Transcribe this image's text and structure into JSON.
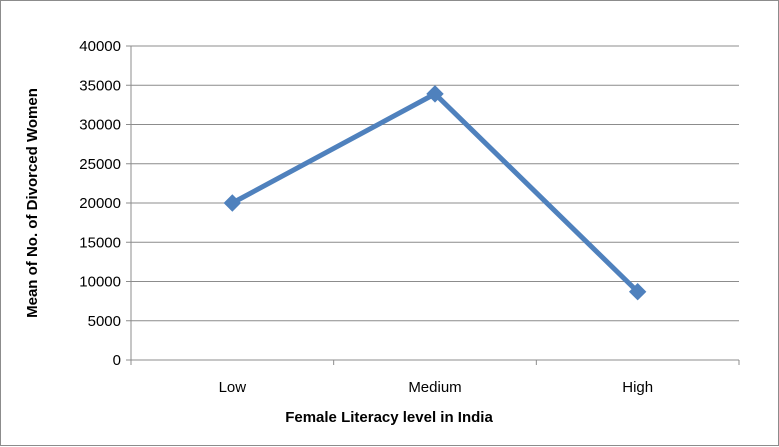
{
  "chart_data": {
    "type": "line",
    "title": "",
    "xlabel": "Female Literacy level in India",
    "ylabel": "Mean of No. of Divorced Women",
    "categories": [
      "Low",
      "Medium",
      "High"
    ],
    "series": [
      {
        "values": [
          20000,
          33900,
          8700
        ],
        "color": "#4F81BD"
      }
    ],
    "ylim": [
      0,
      40000
    ],
    "yticks": [
      "0",
      "5000",
      "10000",
      "15000",
      "20000",
      "25000",
      "30000",
      "35000",
      "40000"
    ],
    "grid": true,
    "legend": "none",
    "marker": "diamond"
  }
}
